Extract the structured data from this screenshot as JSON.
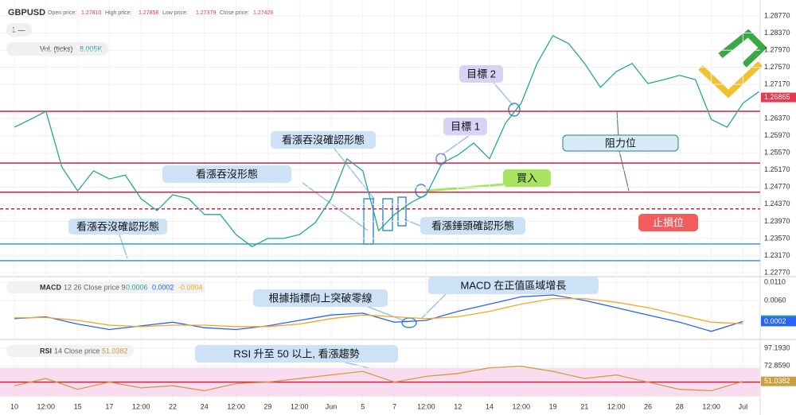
{
  "ui": {
    "interval": "1 —",
    "volume_label": "Vol. (ticks)",
    "volume_value": "8.005K"
  },
  "chart_data": [
    {
      "type": "line",
      "title": "GBPUSD",
      "stats": [
        {
          "label": "Open price:",
          "value": "1.27810"
        },
        {
          "label": "High price:",
          "value": "1.27858"
        },
        {
          "label": "Low price:",
          "value": "1.27379"
        },
        {
          "label": "Close price:",
          "value": "1.27426"
        }
      ],
      "categories": [
        "10",
        null,
        "12:00",
        null,
        "15",
        null,
        "17",
        null,
        "12:00",
        null,
        "22",
        null,
        "24",
        null,
        "12:00",
        null,
        "29",
        null,
        "12:00",
        null,
        "Jun",
        null,
        "5",
        null,
        "7",
        null,
        "12:00",
        null,
        "12",
        null,
        "14",
        null,
        "12:00",
        null,
        "19",
        null,
        "21",
        null,
        "12:00",
        null,
        "26",
        null,
        "28",
        null,
        "12:00",
        null,
        "Jul",
        null
      ],
      "values": [
        1.2617,
        1.2635,
        1.2654,
        1.2524,
        1.2468,
        1.2515,
        1.2496,
        1.2505,
        1.245,
        1.2422,
        1.2459,
        1.245,
        1.2413,
        1.2413,
        1.2366,
        1.2338,
        1.2357,
        1.2357,
        1.2366,
        1.2394,
        1.245,
        1.2543,
        1.2515,
        1.2375,
        1.2413,
        1.244,
        1.2459,
        1.2533,
        1.2552,
        1.258,
        1.2543,
        1.2626,
        1.2673,
        1.2766,
        1.2831,
        1.2812,
        1.2766,
        1.271,
        1.2747,
        1.2766,
        1.2719,
        1.2728,
        1.2738,
        1.2728,
        1.2635,
        1.2617,
        1.2673,
        1.27
      ],
      "color": "#26a69a",
      "ylim": [
        1.2277,
        1.2877
      ],
      "yticks": [
        {
          "value": 1.2877,
          "label": "1.28770"
        },
        {
          "value": 1.2837,
          "label": "1.28370"
        },
        {
          "value": 1.2797,
          "label": "1.27970"
        },
        {
          "value": 1.2757,
          "label": "1.27570"
        },
        {
          "value": 1.2717,
          "label": "1.27170"
        },
        {
          "value": 1.2637,
          "label": "1.26370"
        },
        {
          "value": 1.2597,
          "label": "1.25970"
        },
        {
          "value": 1.2557,
          "label": "1.25570"
        },
        {
          "value": 1.2517,
          "label": "1.25170"
        },
        {
          "value": 1.2477,
          "label": "1.24770"
        },
        {
          "value": 1.2437,
          "label": "1.24370"
        },
        {
          "value": 1.2397,
          "label": "1.23970"
        },
        {
          "value": 1.2357,
          "label": "1.23570"
        },
        {
          "value": 1.2317,
          "label": "1.23170"
        },
        {
          "value": 1.2277,
          "label": "1.22770"
        }
      ],
      "grid": true,
      "last_price": {
        "value": 1.26865,
        "label": "1.26865",
        "color": "#e53950"
      },
      "levels": [
        {
          "value": 1.2654,
          "color": "#d81e3c",
          "dashed": false
        },
        {
          "value": 1.2533,
          "color": "#d81e3c",
          "dashed": false
        },
        {
          "value": 1.2465,
          "color": "#d81e3c",
          "dashed": false
        },
        {
          "value": 1.2426,
          "color": "#d81e3c",
          "dashed": true
        },
        {
          "value": 1.2344,
          "color": "#3aa0c8",
          "dashed": false
        },
        {
          "value": 1.2305,
          "color": "#3aa0c8",
          "dashed": false
        }
      ],
      "annotations": [
        {
          "text": "看漲吞沒確認形態",
          "color": "#cde2f6"
        },
        {
          "text": "看漲吞沒形態",
          "color": "#cde2f6"
        },
        {
          "text": "看漲吞沒確認形態",
          "color": "#cde2f6"
        },
        {
          "text": "看漲錘頭確認形態",
          "color": "#cde2f6"
        },
        {
          "text": "目標 1",
          "color": "#d8d2f4"
        },
        {
          "text": "目標 2",
          "color": "#d8d2f4"
        },
        {
          "text": "買入",
          "color": "#a8e460"
        },
        {
          "text": "阻力位",
          "color": "#d6ebf7"
        },
        {
          "text": "止損位",
          "color": "#f25c5c"
        }
      ]
    },
    {
      "type": "line",
      "title": "MACD",
      "params": "12 26 Close price 9",
      "readouts": [
        {
          "value": 0.0006,
          "label": "0.0006",
          "color": "#26a69a",
          "tag": true
        },
        {
          "value": 0.0002,
          "label": "0.0002",
          "color": "#2962ff",
          "tag": true
        },
        {
          "value": -0.0004,
          "label": "-0.0004",
          "color": "#f5a623",
          "tag": false
        }
      ],
      "series": [
        {
          "name": "MACD",
          "color": "#2962ff",
          "values": [
            0.001,
            0.0015,
            -0.0005,
            -0.002,
            -0.001,
            0.0,
            -0.0015,
            -0.002,
            -0.001,
            0.0005,
            0.002,
            0.0025,
            0.0,
            0.0005,
            0.003,
            0.005,
            0.007,
            0.0075,
            0.006,
            0.004,
            0.002,
            0.0,
            -0.0025,
            0.0002
          ]
        },
        {
          "name": "Signal",
          "color": "#f5a623",
          "values": [
            0.0012,
            0.0013,
            0.0005,
            -0.0008,
            -0.0012,
            -0.0008,
            -0.0008,
            -0.0012,
            -0.0012,
            -0.0005,
            0.001,
            0.002,
            0.0015,
            0.001,
            0.0015,
            0.003,
            0.005,
            0.0065,
            0.0065,
            0.0055,
            0.004,
            0.002,
            0.0,
            -0.0004
          ]
        }
      ],
      "ylim": [
        -0.0043,
        0.0121
      ],
      "yticks": [
        {
          "value": 0.011,
          "label": "0.0110"
        },
        {
          "value": 0.006,
          "label": "0.0060"
        }
      ],
      "annotations": [
        {
          "text": "根據指標向上突破零線",
          "color": "#cde2f6"
        },
        {
          "text": "MACD 在正值區域增長",
          "color": "#cde2f6"
        }
      ]
    },
    {
      "type": "line",
      "title": "RSI",
      "params": "14 Close price",
      "readout": {
        "value": 51.0382,
        "label": "51.0382",
        "color": "#c8a040"
      },
      "values": [
        45,
        55,
        40,
        50,
        42,
        45,
        38,
        48,
        50,
        55,
        60,
        65,
        50,
        58,
        62,
        70,
        72,
        65,
        55,
        60,
        50,
        40,
        38,
        51.0382
      ],
      "color": "#c8a040",
      "band": [
        30,
        70
      ],
      "band_color": "#f9dcef",
      "midline": 50,
      "midline_color": "#d81e3c",
      "ylim": [
        28.6,
        106
      ],
      "yticks": [
        {
          "value": 97.193,
          "label": "97.1930"
        },
        {
          "value": 72.859,
          "label": "72.8590"
        }
      ],
      "annotations": [
        {
          "text": "RSI 升至 50 以上, 看漲趨勢",
          "color": "#cde2f6"
        }
      ]
    }
  ]
}
